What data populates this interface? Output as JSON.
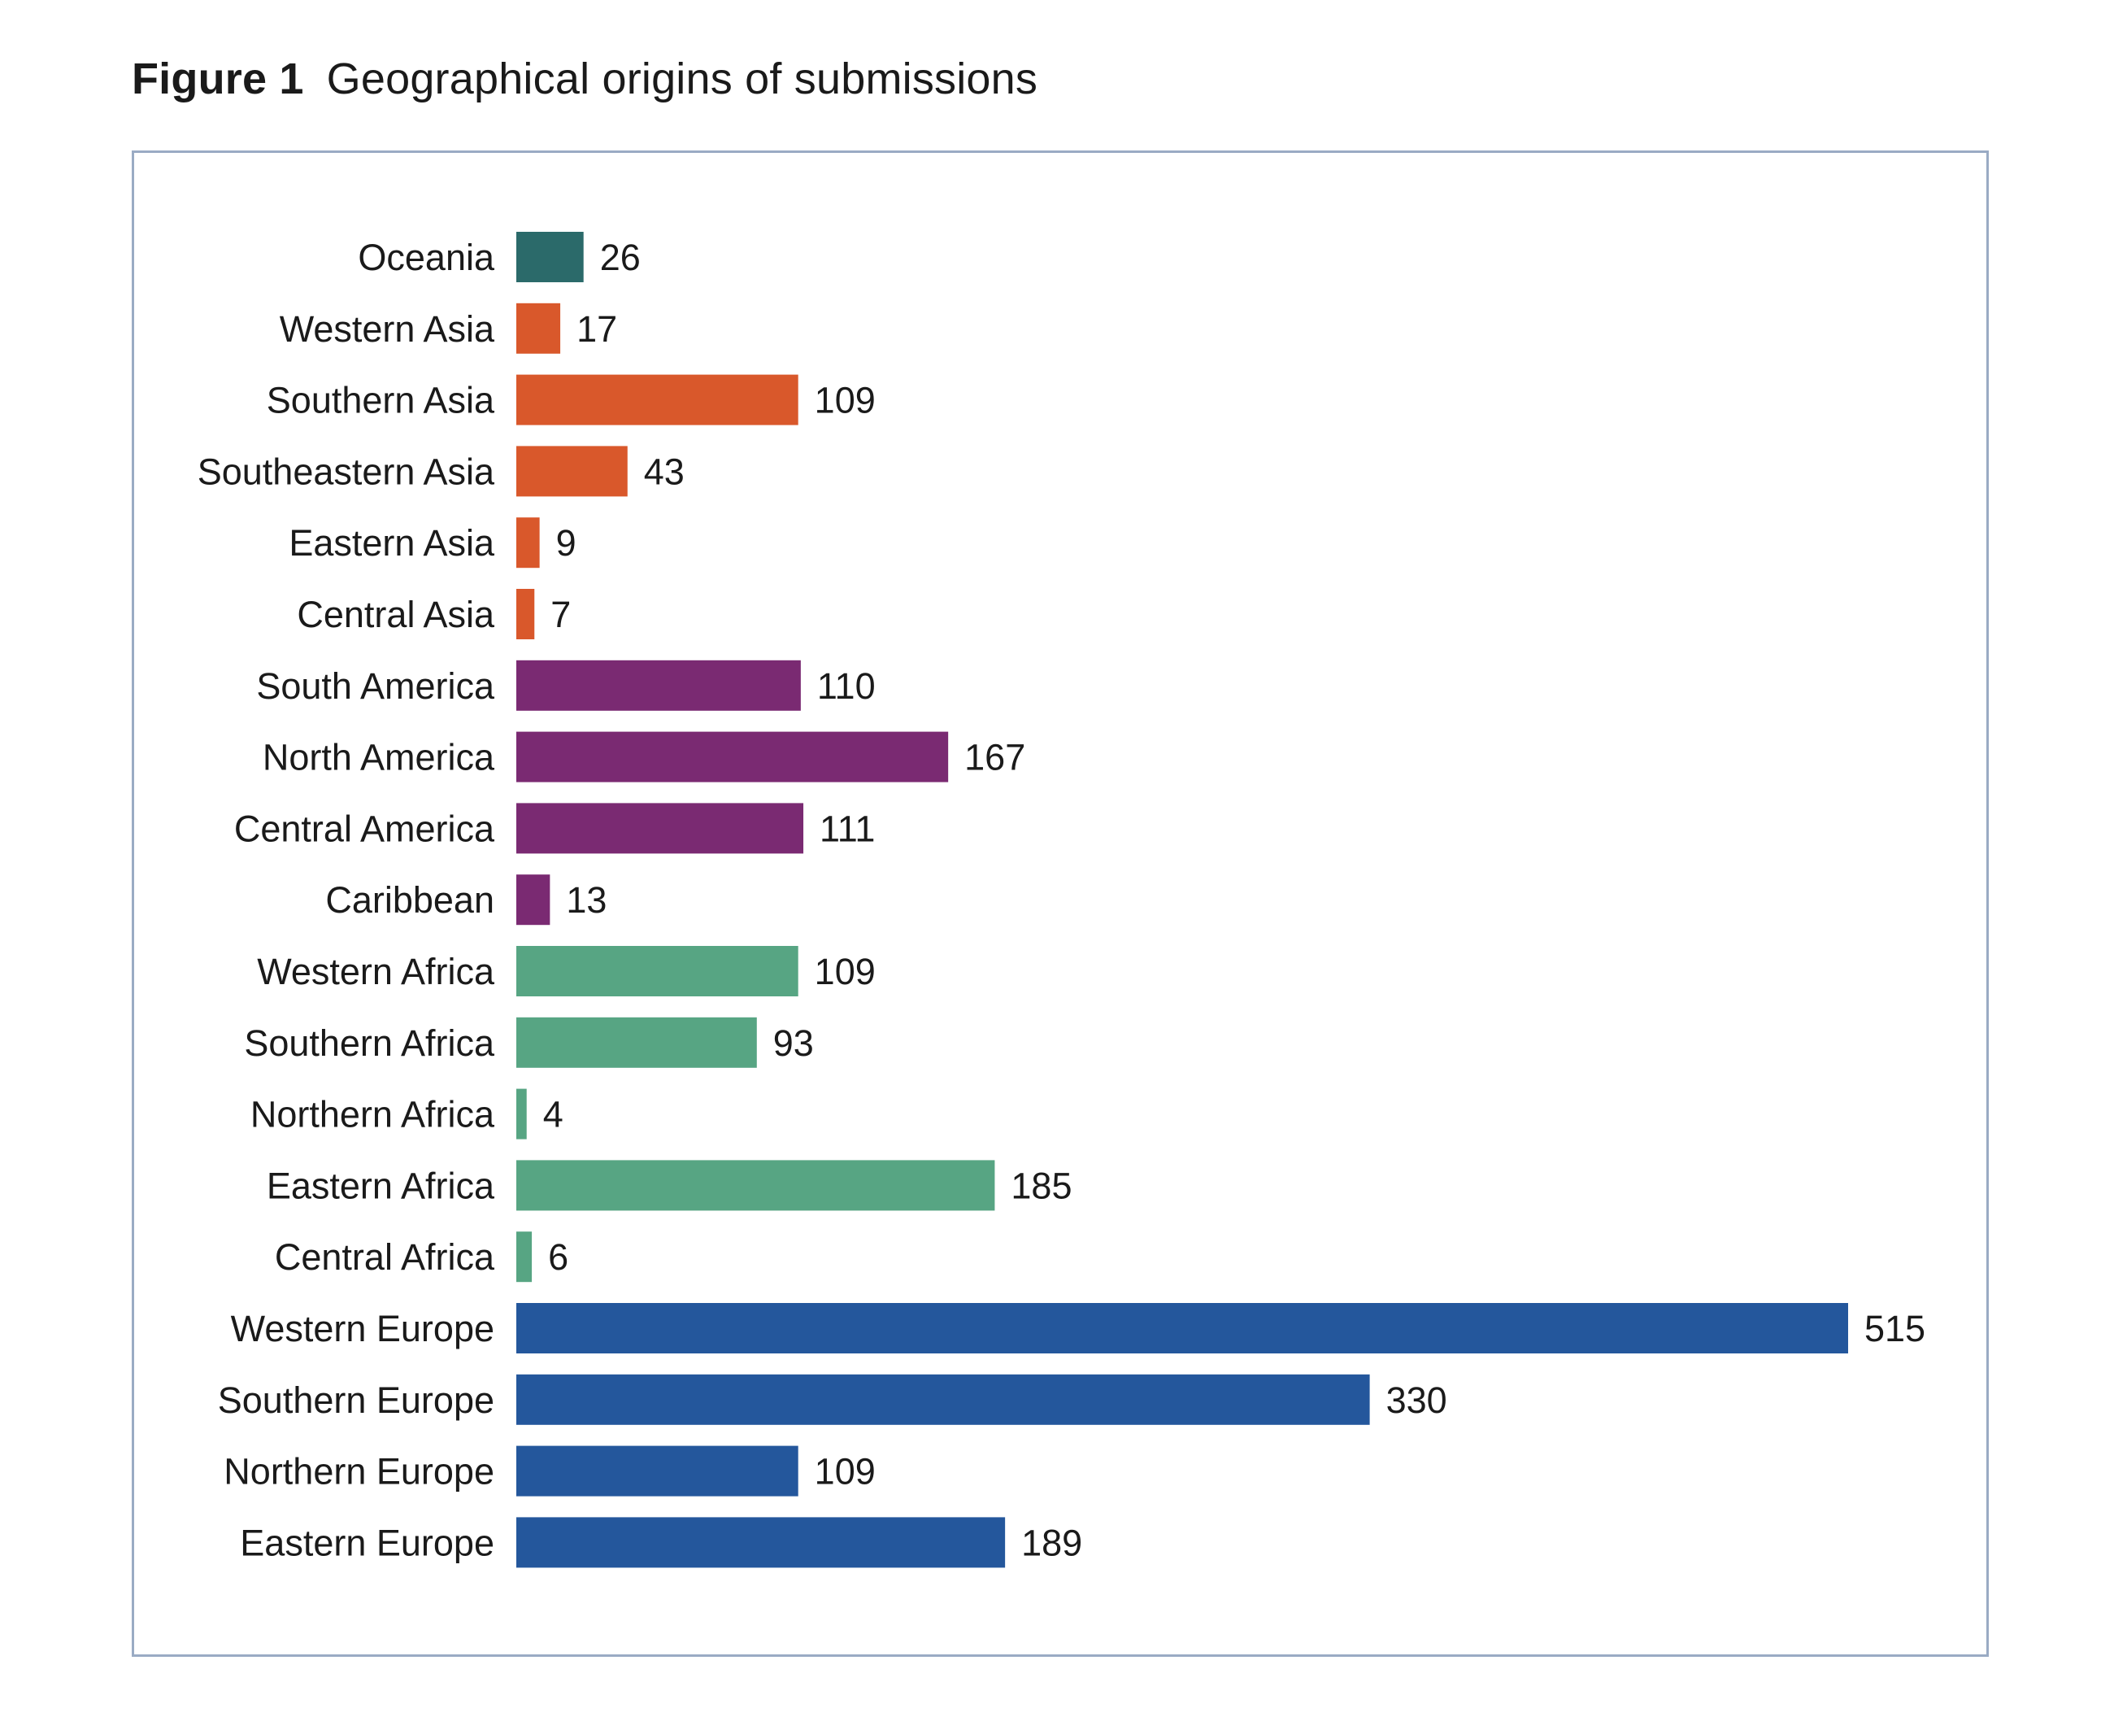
{
  "figure": {
    "label": "Figure 1",
    "title": "Geographical origins of submissions"
  },
  "chart_data": {
    "type": "bar",
    "orientation": "horizontal",
    "title": "Geographical origins of submissions",
    "xlabel": "",
    "ylabel": "",
    "xlim": [
      0,
      515
    ],
    "grid": false,
    "legend": "none",
    "categories": [
      "Oceania",
      "Western Asia",
      "Southern Asia",
      "Southeastern Asia",
      "Eastern Asia",
      "Central Asia",
      "South America",
      "North America",
      "Central America",
      "Caribbean",
      "Western Africa",
      "Southern Africa",
      "Northern Africa",
      "Eastern Africa",
      "Central Africa",
      "Western Europe",
      "Southern Europe",
      "Northern Europe",
      "Eastern Europe"
    ],
    "values": [
      26,
      17,
      109,
      43,
      9,
      7,
      110,
      167,
      111,
      13,
      109,
      93,
      4,
      185,
      6,
      515,
      330,
      109,
      189
    ],
    "group_colors": {
      "oceania": "#2b6a6a",
      "asia": "#d9582b",
      "americas": "#7a2a72",
      "africa": "#57a583",
      "europe": "#24579c"
    },
    "bar_groups": [
      "oceania",
      "asia",
      "asia",
      "asia",
      "asia",
      "asia",
      "americas",
      "americas",
      "americas",
      "americas",
      "africa",
      "africa",
      "africa",
      "africa",
      "africa",
      "europe",
      "europe",
      "europe",
      "europe"
    ]
  }
}
